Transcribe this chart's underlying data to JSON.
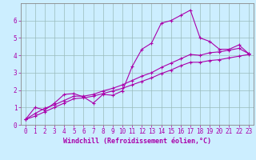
{
  "xlabel": "Windchill (Refroidissement éolien,°C)",
  "bg_color": "#cceeff",
  "line_color": "#aa00aa",
  "grid_color": "#99bbbb",
  "xlim": [
    -0.5,
    23.5
  ],
  "ylim": [
    0,
    7
  ],
  "series1_x": [
    0,
    1,
    2,
    3,
    4,
    5,
    6,
    7,
    8,
    9,
    10,
    11,
    12,
    13,
    14,
    15,
    16,
    17,
    18,
    19,
    20,
    21,
    22,
    23
  ],
  "series1_y": [
    0.3,
    1.0,
    0.85,
    1.25,
    1.75,
    1.8,
    1.6,
    1.25,
    1.75,
    1.7,
    1.95,
    3.35,
    4.35,
    4.7,
    5.85,
    6.0,
    6.3,
    6.6,
    5.0,
    4.8,
    4.35,
    4.35,
    4.6,
    4.1
  ],
  "series2_x": [
    0,
    1,
    2,
    3,
    4,
    5,
    6,
    7,
    8,
    9,
    10,
    11,
    12,
    13,
    14,
    15,
    16,
    17,
    18,
    19,
    20,
    21,
    22,
    23
  ],
  "series2_y": [
    0.3,
    0.5,
    0.75,
    1.0,
    1.25,
    1.5,
    1.55,
    1.65,
    1.8,
    1.95,
    2.1,
    2.3,
    2.5,
    2.7,
    2.95,
    3.15,
    3.4,
    3.6,
    3.6,
    3.7,
    3.75,
    3.85,
    3.95,
    4.05
  ],
  "series3_x": [
    0,
    1,
    2,
    3,
    4,
    5,
    6,
    7,
    8,
    9,
    10,
    11,
    12,
    13,
    14,
    15,
    16,
    17,
    18,
    19,
    20,
    21,
    22,
    23
  ],
  "series3_y": [
    0.3,
    0.65,
    0.95,
    1.15,
    1.4,
    1.65,
    1.65,
    1.75,
    1.95,
    2.1,
    2.3,
    2.55,
    2.8,
    3.0,
    3.3,
    3.55,
    3.8,
    4.05,
    4.0,
    4.15,
    4.2,
    4.3,
    4.4,
    4.1
  ],
  "xtick_labels": [
    "0",
    "1",
    "2",
    "3",
    "4",
    "5",
    "6",
    "7",
    "8",
    "9",
    "10",
    "11",
    "12",
    "13",
    "14",
    "15",
    "16",
    "17",
    "18",
    "19",
    "20",
    "21",
    "22",
    "23"
  ],
  "ytick_labels": [
    "0",
    "1",
    "2",
    "3",
    "4",
    "5",
    "6"
  ],
  "axis_fontsize": 6.0,
  "tick_fontsize": 5.5
}
